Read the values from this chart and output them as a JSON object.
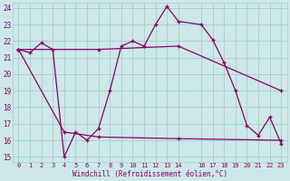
{
  "xlabel": "Windchill (Refroidissement éolien,°C)",
  "bg_color": "#cce8e8",
  "grid_color": "#aacccc",
  "line_color": "#880066",
  "ylim": [
    15,
    24
  ],
  "xlim": [
    -0.5,
    23.5
  ],
  "yticks": [
    15,
    16,
    17,
    18,
    19,
    20,
    21,
    22,
    23,
    24
  ],
  "xticks": [
    0,
    1,
    2,
    3,
    4,
    5,
    6,
    7,
    8,
    9,
    10,
    11,
    12,
    13,
    14,
    16,
    17,
    18,
    19,
    20,
    21,
    22,
    23
  ],
  "xtick_labels": [
    "0",
    "1",
    "2",
    "3",
    "4",
    "5",
    "6",
    "7",
    "8",
    "9",
    "10",
    "11",
    "12",
    "13",
    "14",
    "16",
    "17",
    "18",
    "19",
    "20",
    "21",
    "22",
    "23"
  ],
  "series1": [
    [
      0,
      21.5
    ],
    [
      1,
      21.3
    ],
    [
      2,
      21.9
    ],
    [
      3,
      21.5
    ],
    [
      4,
      15.0
    ],
    [
      5,
      16.5
    ],
    [
      6,
      16.0
    ],
    [
      7,
      16.7
    ],
    [
      8,
      19.0
    ],
    [
      9,
      21.7
    ],
    [
      10,
      22.0
    ],
    [
      11,
      21.7
    ],
    [
      12,
      23.0
    ],
    [
      13,
      24.1
    ],
    [
      14,
      23.2
    ],
    [
      16,
      23.0
    ],
    [
      17,
      22.1
    ],
    [
      18,
      20.7
    ],
    [
      19,
      19.0
    ],
    [
      20,
      16.9
    ],
    [
      21,
      16.3
    ],
    [
      22,
      17.4
    ],
    [
      23,
      15.8
    ]
  ],
  "series2": [
    [
      0,
      21.5
    ],
    [
      7,
      21.5
    ],
    [
      14,
      21.7
    ],
    [
      23,
      19.0
    ]
  ],
  "series3": [
    [
      0,
      21.5
    ],
    [
      4,
      16.5
    ],
    [
      7,
      16.2
    ],
    [
      14,
      16.1
    ],
    [
      23,
      16.0
    ]
  ]
}
